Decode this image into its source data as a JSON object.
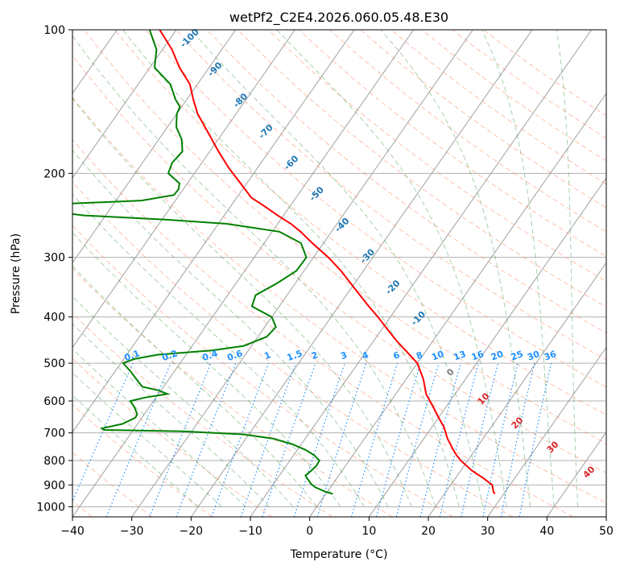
{
  "chart_data": {
    "type": "line",
    "title": "wetPf2_C2E4.2026.060.05.48.E30",
    "xlabel": "Temperature (°C)",
    "ylabel": "Pressure (hPa)",
    "xlim": [
      -40,
      50
    ],
    "ylim": [
      1050,
      100
    ],
    "y_scale": "log",
    "grid": true,
    "x_ticks": [
      -40,
      -30,
      -20,
      -10,
      0,
      10,
      20,
      30,
      40,
      50
    ],
    "y_ticks": [
      100,
      200,
      300,
      400,
      500,
      600,
      700,
      800,
      900,
      1000
    ],
    "skew_note": "Skew-T log-P diagram",
    "series": [
      {
        "name": "temperature",
        "color": "#ff0000",
        "p": [
          940,
          930,
          900,
          870,
          840,
          800,
          780,
          760,
          720,
          680,
          650,
          620,
          580,
          540,
          500,
          470,
          450,
          420,
          400,
          380,
          350,
          320,
          300,
          280,
          265,
          255,
          245,
          235,
          225,
          210,
          195,
          180,
          165,
          150,
          140,
          130,
          120,
          110,
          100
        ],
        "t": [
          28.5,
          28,
          27,
          24.6,
          21.9,
          18.8,
          17.5,
          16.3,
          14,
          12,
          10,
          8,
          5.1,
          2.9,
          0,
          -3.5,
          -6,
          -9.6,
          -12.1,
          -14.9,
          -19.2,
          -23.8,
          -27.5,
          -31.9,
          -35.2,
          -37.8,
          -41,
          -44.1,
          -47.5,
          -51,
          -54.8,
          -58.5,
          -62.3,
          -66.5,
          -68.9,
          -71.3,
          -75,
          -78.4,
          -82.8
        ]
      },
      {
        "name": "dewpoint",
        "color": "#008000",
        "p": [
          940,
          930,
          910,
          895,
          880,
          870,
          860,
          840,
          820,
          800,
          780,
          760,
          740,
          720,
          705,
          695,
          690,
          685,
          670,
          650,
          640,
          620,
          600,
          590,
          580,
          570,
          560,
          540,
          520,
          500,
          490,
          480,
          470,
          460,
          440,
          420,
          400,
          380,
          360,
          340,
          320,
          300,
          280,
          265,
          255,
          250,
          245,
          240,
          236,
          232,
          228,
          222,
          216,
          210,
          200,
          190,
          180,
          170,
          160,
          150,
          145,
          140,
          130,
          120,
          110,
          100
        ],
        "t": [
          1.2,
          -0.3,
          -2.6,
          -3.7,
          -4.5,
          -5.1,
          -5.6,
          -5.2,
          -4.9,
          -5,
          -6.5,
          -8.6,
          -11.4,
          -15.3,
          -21,
          -31.4,
          -44.9,
          -45.5,
          -42.5,
          -41.1,
          -41.2,
          -42.4,
          -43.9,
          -41.8,
          -38.5,
          -40.5,
          -43.6,
          -45.5,
          -47.4,
          -49.6,
          -48.2,
          -44.8,
          -36.1,
          -31.3,
          -28.5,
          -28.1,
          -30,
          -34.6,
          -35.3,
          -33.1,
          -31.3,
          -31.2,
          -33.8,
          -38.8,
          -48.7,
          -59.5,
          -73.6,
          -80.2,
          -81.2,
          -79.1,
          -65.7,
          -60.9,
          -60.8,
          -61.3,
          -64.4,
          -65,
          -64.6,
          -66.1,
          -68.5,
          -70,
          -70.3,
          -71.9,
          -74.6,
          -79.2,
          -81,
          -84.5
        ]
      }
    ],
    "isotherm_labels": [],
    "dry_adiabat_labels": [
      "-100",
      "-90",
      "-80",
      "-70",
      "-60",
      "-50",
      "-40",
      "-30",
      "-20",
      "-10"
    ],
    "dry_adiabat_label_values": [
      -100,
      -90,
      -80,
      -70,
      -60,
      -50,
      -40,
      -30,
      -20,
      -10
    ],
    "moist_adiabat_labels": [
      "0",
      "10",
      "20",
      "30",
      "40"
    ],
    "moist_adiabat_label_values": [
      0,
      10,
      20,
      30,
      40
    ],
    "mixing_ratio_labels": [
      "0.1",
      "0.2",
      "0.4",
      "0.6",
      "1",
      "1.5",
      "2",
      "3",
      "4",
      "6",
      "8",
      "10",
      "13",
      "16",
      "20",
      "25",
      "30",
      "36"
    ],
    "mixing_ratio_values": [
      0.1,
      0.2,
      0.4,
      0.6,
      1,
      1.5,
      2,
      3,
      4,
      6,
      8,
      10,
      13,
      16,
      20,
      25,
      30,
      36
    ],
    "colors": {
      "isotherm": "#a0a0a0",
      "dry_adiabat": "#ff8c69",
      "moist_adiabat": "#228b22",
      "mixing_ratio": "#1e90ff",
      "dry_label": "#1f77b4",
      "moist_label": "#d62728"
    }
  }
}
